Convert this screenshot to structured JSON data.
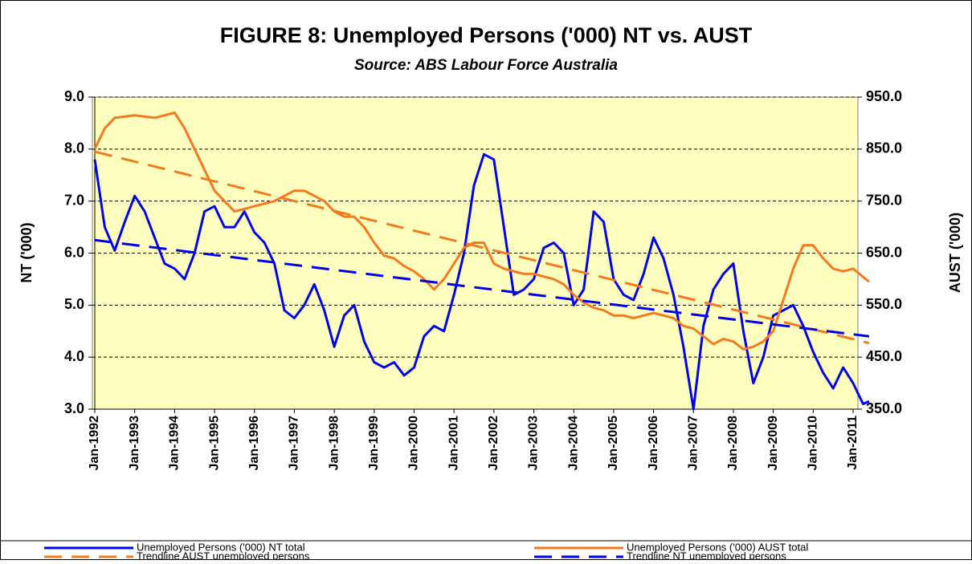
{
  "chart_data": {
    "type": "line",
    "title": "FIGURE 8: Unemployed Persons ('000) NT vs. AUST",
    "subtitle": "Source: ABS Labour Force Australia",
    "y_label": "NT ('000)",
    "y2_label": "AUST ('000)",
    "xlim": [
      1992,
      2011.4
    ],
    "xticks": [
      {
        "value": 1992,
        "label": "Jan-1992"
      },
      {
        "value": 1993,
        "label": "Jan-1993"
      },
      {
        "value": 1994,
        "label": "Jan-1994"
      },
      {
        "value": 1995,
        "label": "Jan-1995"
      },
      {
        "value": 1996,
        "label": "Jan-1996"
      },
      {
        "value": 1997,
        "label": "Jan-1997"
      },
      {
        "value": 1998,
        "label": "Jan-1998"
      },
      {
        "value": 1999,
        "label": "Jan-1999"
      },
      {
        "value": 2000,
        "label": "Jan-2000"
      },
      {
        "value": 2001,
        "label": "Jan-2001"
      },
      {
        "value": 2002,
        "label": "Jan-2002"
      },
      {
        "value": 2003,
        "label": "Jan-2003"
      },
      {
        "value": 2004,
        "label": "Jan-2004"
      },
      {
        "value": 2005,
        "label": "Jan-2005"
      },
      {
        "value": 2006,
        "label": "Jan-2006"
      },
      {
        "value": 2007,
        "label": "Jan-2007"
      },
      {
        "value": 2008,
        "label": "Jan-2008"
      },
      {
        "value": 2009,
        "label": "Jan-2009"
      },
      {
        "value": 2010,
        "label": "Jan-2010"
      },
      {
        "value": 2011,
        "label": "Jan-2011"
      }
    ],
    "ylim": [
      3,
      9
    ],
    "yticks": [
      {
        "value": 3,
        "label": "3.0"
      },
      {
        "value": 4,
        "label": "4.0"
      },
      {
        "value": 5,
        "label": "5.0"
      },
      {
        "value": 6,
        "label": "6.0"
      },
      {
        "value": 7,
        "label": "7.0"
      },
      {
        "value": 8,
        "label": "8.0"
      },
      {
        "value": 9,
        "label": "9.0"
      }
    ],
    "y2lim": [
      350,
      950
    ],
    "y2ticks": [
      {
        "value": 350,
        "label": "350.0"
      },
      {
        "value": 450,
        "label": "450.0"
      },
      {
        "value": 550,
        "label": "550.0"
      },
      {
        "value": 650,
        "label": "650.0"
      },
      {
        "value": 750,
        "label": "750.0"
      },
      {
        "value": 850,
        "label": "850.0"
      },
      {
        "value": 950,
        "label": "950.0"
      }
    ],
    "grid": true,
    "legend": "bottom",
    "series": [
      {
        "name": "Unemployed Persons ('000) NT total",
        "color": "#0000ee",
        "dashed": false,
        "x": [
          1992,
          1992.25,
          1992.5,
          1992.75,
          1993,
          1993.25,
          1993.5,
          1993.75,
          1994,
          1994.25,
          1994.5,
          1994.75,
          1995,
          1995.25,
          1995.5,
          1995.75,
          1996,
          1996.25,
          1996.5,
          1996.75,
          1997,
          1997.25,
          1997.5,
          1997.75,
          1998,
          1998.25,
          1998.5,
          1998.75,
          1999,
          1999.25,
          1999.5,
          1999.75,
          2000,
          2000.25,
          2000.5,
          2000.75,
          2001,
          2001.25,
          2001.5,
          2001.75,
          2002,
          2002.25,
          2002.5,
          2002.75,
          2003,
          2003.25,
          2003.5,
          2003.75,
          2004,
          2004.25,
          2004.5,
          2004.75,
          2005,
          2005.25,
          2005.5,
          2005.75,
          2006,
          2006.25,
          2006.5,
          2006.75,
          2007,
          2007.25,
          2007.5,
          2007.75,
          2008,
          2008.25,
          2008.5,
          2008.75,
          2009,
          2009.25,
          2009.5,
          2009.75,
          2010,
          2010.25,
          2010.5,
          2010.75,
          2011,
          2011.25,
          2011.4
        ],
        "values": [
          7.8,
          6.5,
          6.05,
          6.6,
          7.1,
          6.8,
          6.3,
          5.8,
          5.7,
          5.5,
          6.0,
          6.8,
          6.9,
          6.5,
          6.5,
          6.8,
          6.4,
          6.2,
          5.8,
          4.9,
          4.75,
          5.0,
          5.4,
          4.9,
          4.2,
          4.8,
          5.0,
          4.3,
          3.9,
          3.8,
          3.9,
          3.65,
          3.8,
          4.4,
          4.6,
          4.5,
          5.2,
          6.0,
          7.3,
          7.9,
          7.8,
          6.5,
          5.2,
          5.3,
          5.5,
          6.1,
          6.2,
          6.0,
          5.0,
          5.3,
          6.8,
          6.6,
          5.5,
          5.2,
          5.1,
          5.6,
          6.3,
          5.9,
          5.2,
          4.2,
          3.0,
          4.6,
          5.3,
          5.6,
          5.8,
          4.5,
          3.5,
          4.0,
          4.8,
          4.9,
          5.0,
          4.6,
          4.1,
          3.7,
          3.4,
          3.8,
          3.5,
          3.1,
          3.15
        ]
      },
      {
        "name": "Unemployed Persons ('000) AUST total",
        "color": "#f57a1f",
        "dashed": false,
        "axis": "y2",
        "x": [
          1992,
          1992.25,
          1992.5,
          1993,
          1993.5,
          1994,
          1994.25,
          1994.5,
          1994.75,
          1995,
          1995.25,
          1995.5,
          1995.75,
          1996,
          1996.5,
          1997,
          1997.25,
          1997.5,
          1997.75,
          1998,
          1998.25,
          1998.5,
          1998.75,
          1999,
          1999.25,
          1999.5,
          1999.75,
          2000,
          2000.25,
          2000.5,
          2000.75,
          2001,
          2001.25,
          2001.5,
          2001.75,
          2002,
          2002.25,
          2002.5,
          2002.75,
          2003,
          2003.25,
          2003.5,
          2003.75,
          2004,
          2004.25,
          2004.5,
          2004.75,
          2005,
          2005.25,
          2005.5,
          2005.75,
          2006,
          2006.5,
          2006.75,
          2007,
          2007.25,
          2007.5,
          2007.75,
          2008,
          2008.25,
          2008.5,
          2008.75,
          2009,
          2009.25,
          2009.5,
          2009.75,
          2010,
          2010.25,
          2010.5,
          2010.75,
          2011,
          2011.4
        ],
        "values": [
          850,
          890,
          910,
          915,
          910,
          920,
          890,
          850,
          810,
          770,
          750,
          730,
          735,
          740,
          750,
          770,
          770,
          760,
          750,
          730,
          720,
          720,
          700,
          670,
          645,
          640,
          625,
          615,
          600,
          580,
          600,
          630,
          660,
          670,
          670,
          630,
          620,
          615,
          610,
          610,
          605,
          600,
          590,
          570,
          555,
          545,
          540,
          530,
          530,
          525,
          530,
          535,
          525,
          510,
          505,
          490,
          475,
          485,
          480,
          465,
          470,
          480,
          500,
          560,
          620,
          665,
          665,
          640,
          620,
          615,
          620,
          595
        ]
      },
      {
        "name": "Trendline AUST unemployed persons",
        "color": "#f57a1f",
        "dashed": true,
        "axis": "y2",
        "x": [
          1992,
          2011.4
        ],
        "values": [
          845,
          477
        ]
      },
      {
        "name": "Trendline NT unemployed persons",
        "color": "#0000ee",
        "dashed": true,
        "x": [
          1992,
          2011.4
        ],
        "values": [
          6.25,
          4.4
        ]
      }
    ]
  }
}
